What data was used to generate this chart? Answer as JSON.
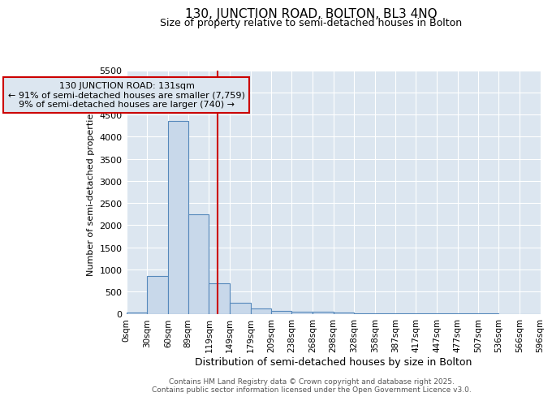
{
  "title_line1": "130, JUNCTION ROAD, BOLTON, BL3 4NQ",
  "title_line2": "Size of property relative to semi-detached houses in Bolton",
  "xlabel": "Distribution of semi-detached houses by size in Bolton",
  "ylabel": "Number of semi-detached properties",
  "bin_edges": [
    0,
    30,
    60,
    89,
    119,
    149,
    179,
    209,
    238,
    268,
    298,
    328,
    358,
    387,
    417,
    447,
    477,
    507,
    536,
    566,
    596
  ],
  "bin_labels": [
    "0sqm",
    "30sqm",
    "60sqm",
    "89sqm",
    "119sqm",
    "149sqm",
    "179sqm",
    "209sqm",
    "238sqm",
    "268sqm",
    "298sqm",
    "328sqm",
    "358sqm",
    "387sqm",
    "417sqm",
    "447sqm",
    "477sqm",
    "507sqm",
    "536sqm",
    "566sqm",
    "596sqm"
  ],
  "counts": [
    30,
    850,
    4350,
    2250,
    680,
    250,
    120,
    70,
    55,
    40,
    30,
    10,
    5,
    3,
    2,
    1,
    1,
    1,
    0,
    0
  ],
  "bar_color": "#c8d8ea",
  "bar_edgecolor": "#5588bb",
  "vline_x": 131,
  "vline_color": "#cc0000",
  "ylim": [
    0,
    5500
  ],
  "yticks": [
    0,
    500,
    1000,
    1500,
    2000,
    2500,
    3000,
    3500,
    4000,
    4500,
    5000,
    5500
  ],
  "annotation_title": "130 JUNCTION ROAD: 131sqm",
  "annotation_line1": "← 91% of semi-detached houses are smaller (7,759)",
  "annotation_line2": "9% of semi-detached houses are larger (740) →",
  "annotation_box_color": "#cc0000",
  "plot_bg_color": "#dce6f0",
  "figure_bg_color": "#ffffff",
  "grid_color": "#ffffff",
  "footer_line1": "Contains HM Land Registry data © Crown copyright and database right 2025.",
  "footer_line2": "Contains public sector information licensed under the Open Government Licence v3.0."
}
